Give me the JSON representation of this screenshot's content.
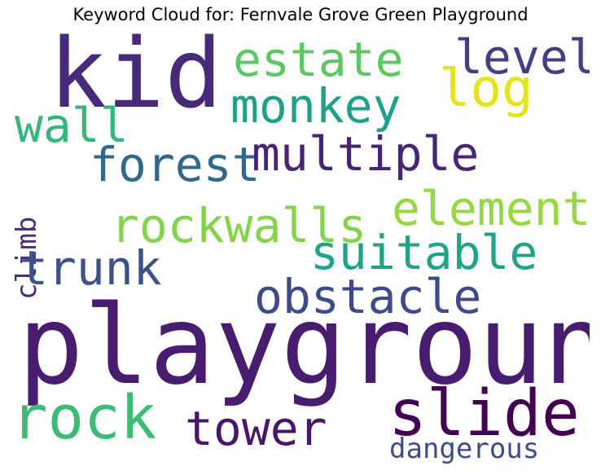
{
  "title": "Keyword Cloud for: Fernvale Grove Green Playground",
  "words": [
    {
      "text": "kid",
      "color": "#472a7a"
    },
    {
      "text": "estate",
      "color": "#5cc863"
    },
    {
      "text": "level",
      "color": "#433e85"
    },
    {
      "text": "log",
      "color": "#e5e419"
    },
    {
      "text": "monkey",
      "color": "#1fa088"
    },
    {
      "text": "wall",
      "color": "#35b779"
    },
    {
      "text": "forest",
      "color": "#31688e"
    },
    {
      "text": "multiple",
      "color": "#482475"
    },
    {
      "text": "climb",
      "color": "#46307e"
    },
    {
      "text": "element",
      "color": "#95d840"
    },
    {
      "text": "rockwalls",
      "color": "#84d44b"
    },
    {
      "text": "suitable",
      "color": "#20a486"
    },
    {
      "text": "trunk",
      "color": "#3b528b"
    },
    {
      "text": "obstacle",
      "color": "#3e4a89"
    },
    {
      "text": "playground",
      "color": "#481d6f"
    },
    {
      "text": "rock",
      "color": "#3dbc74"
    },
    {
      "text": "slide",
      "color": "#440154"
    },
    {
      "text": "tower",
      "color": "#481769"
    },
    {
      "text": "dangerous",
      "color": "#3e4c8a"
    }
  ]
}
